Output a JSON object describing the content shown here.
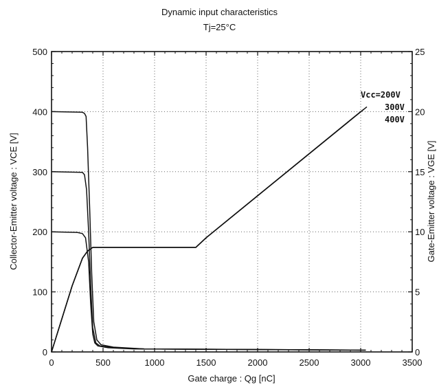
{
  "chart_data": {
    "type": "line",
    "title": "Dynamic input characteristics",
    "subtitle": "Tj=25°C",
    "xlabel": "Gate charge : Qg [nC]",
    "ylabel": "Collector-Emitter voltage : VCE [V]",
    "y2label": "Gate-Emitter voltage : VGE [V]",
    "xlim": [
      0,
      3500
    ],
    "ylim": [
      0,
      500
    ],
    "y2lim": [
      0,
      25
    ],
    "xticks": [
      "0",
      "500",
      "1000",
      "1500",
      "2000",
      "2500",
      "3000",
      "3500"
    ],
    "yticks": [
      "0",
      "100",
      "200",
      "300",
      "400",
      "500"
    ],
    "y2ticks": [
      "0",
      "5",
      "10",
      "15",
      "20",
      "25"
    ],
    "grid": true,
    "annotations": [
      "Vcc=200V",
      "300V",
      "400V"
    ],
    "series": [
      {
        "name": "Vcc=200V",
        "axis": "left",
        "x": [
          0,
          250,
          300,
          330,
          360,
          380,
          400,
          420,
          450,
          550,
          800,
          3000
        ],
        "y": [
          200,
          199,
          197,
          190,
          150,
          80,
          30,
          15,
          10,
          7,
          5,
          3
        ]
      },
      {
        "name": "300V",
        "axis": "left",
        "x": [
          0,
          300,
          320,
          340,
          360,
          380,
          400,
          430,
          470,
          600,
          900,
          3050
        ],
        "y": [
          300,
          299,
          295,
          270,
          200,
          110,
          40,
          15,
          10,
          7,
          5,
          3
        ]
      },
      {
        "name": "400V",
        "axis": "left",
        "x": [
          0,
          300,
          320,
          335,
          350,
          370,
          390,
          410,
          440,
          480,
          600,
          900,
          3050
        ],
        "y": [
          400,
          399,
          397,
          392,
          340,
          240,
          130,
          50,
          20,
          12,
          8,
          5,
          3
        ]
      },
      {
        "name": "Vcc=200V",
        "axis": "right",
        "x": [
          0,
          200,
          300,
          350,
          400,
          1400,
          1500,
          3000
        ],
        "y": [
          0,
          5.5,
          7.8,
          8.4,
          8.7,
          8.7,
          9.5,
          20.0
        ]
      },
      {
        "name": "300V",
        "axis": "right",
        "x": [
          0,
          200,
          300,
          350,
          400,
          1400,
          1500,
          3030
        ],
        "y": [
          0,
          5.5,
          7.8,
          8.4,
          8.7,
          8.7,
          9.5,
          20.2
        ]
      },
      {
        "name": "400V",
        "axis": "right",
        "x": [
          0,
          200,
          300,
          350,
          400,
          1400,
          1500,
          3060
        ],
        "y": [
          0,
          5.5,
          7.8,
          8.4,
          8.7,
          8.7,
          9.5,
          20.4
        ]
      }
    ]
  }
}
